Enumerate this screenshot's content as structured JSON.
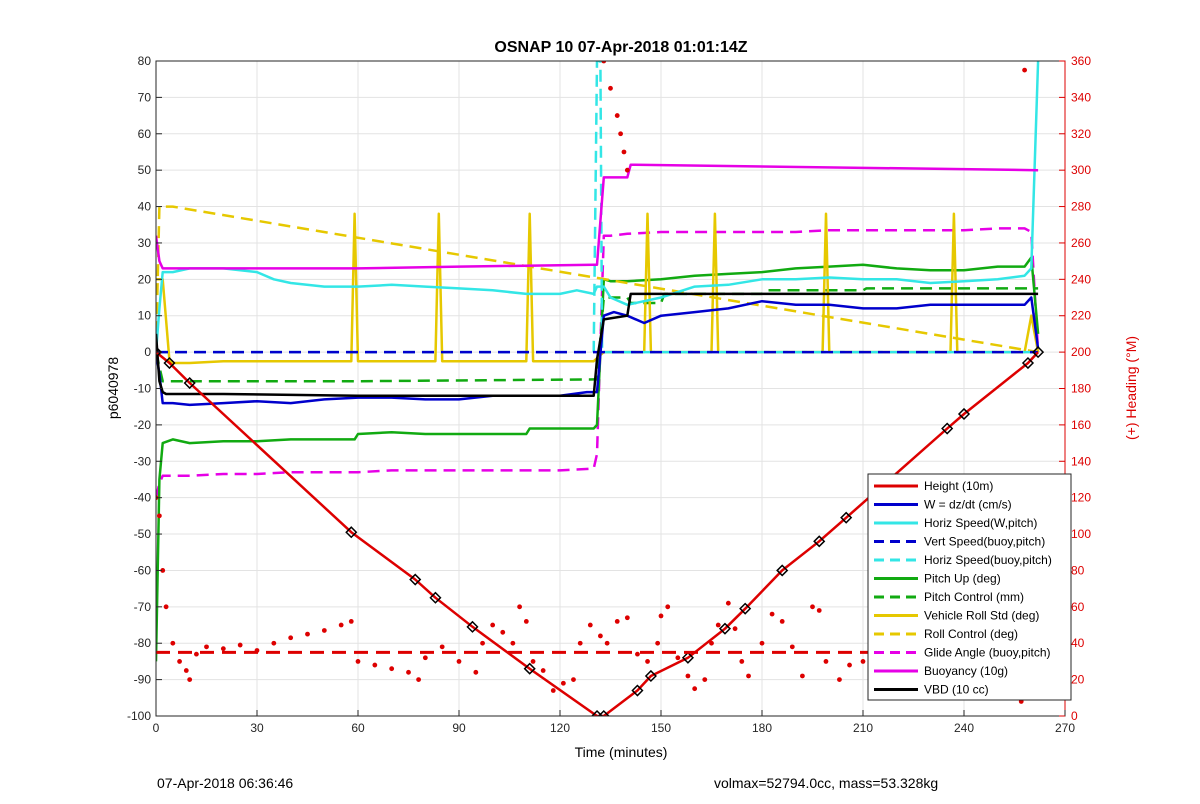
{
  "footer": {
    "left": "07-Apr-2018 06:36:46",
    "right": "volmax=52794.0cc, mass=53.328kg"
  },
  "chart_data": {
    "type": "line",
    "title": "OSNAP 10 07-Apr-2018 01:01:14Z",
    "xlabel": "Time (minutes)",
    "ylabel": "p6040978",
    "y2label": "(+) Heading (°M)",
    "xlim": [
      0,
      270
    ],
    "ylim": [
      -100,
      80
    ],
    "y2lim": [
      0,
      360
    ],
    "xticks": [
      0,
      30,
      60,
      90,
      120,
      150,
      180,
      210,
      240,
      270
    ],
    "yticks": [
      -100,
      -90,
      -80,
      -70,
      -60,
      -50,
      -40,
      -30,
      -20,
      -10,
      0,
      10,
      20,
      30,
      40,
      50,
      60,
      70,
      80
    ],
    "y2ticks": [
      0,
      20,
      40,
      60,
      80,
      100,
      120,
      140,
      160,
      180,
      200,
      220,
      240,
      260,
      280,
      300,
      320,
      340,
      360
    ],
    "grid": true,
    "legend_position": "bottom-right",
    "colors": {
      "height": "#dd0000",
      "w": "#0000cc",
      "horiz": "#33e6e6",
      "pitch": "#11aa11",
      "roll": "#e6c800",
      "glide": "#e600e6",
      "buoy": "#e600e6",
      "vbd": "#000000",
      "heading": "#dd0000",
      "right_axis": "#dd0000"
    },
    "series": [
      {
        "name": "Height (10m)",
        "key": "height",
        "style": "solid",
        "x": [
          0,
          4,
          10,
          58,
          77,
          83,
          94,
          111,
          131,
          133,
          143,
          147,
          158,
          169,
          175,
          186,
          197,
          205,
          235,
          240,
          259,
          262
        ],
        "y": [
          0,
          -3,
          -8.5,
          -49.5,
          -62.5,
          -67.5,
          -75.5,
          -87,
          -100,
          -100,
          -93,
          -89,
          -84,
          -76,
          -70.5,
          -60,
          -52,
          -45.5,
          -21,
          -17,
          -3,
          0
        ]
      },
      {
        "name": "W = dz/dt (cm/s)",
        "key": "w",
        "style": "solid",
        "x": [
          0,
          1,
          2,
          5,
          10,
          20,
          30,
          40,
          50,
          60,
          70,
          80,
          90,
          100,
          110,
          120,
          128,
          131,
          133,
          136,
          140,
          145,
          150,
          160,
          170,
          180,
          190,
          200,
          210,
          220,
          230,
          240,
          250,
          258,
          260,
          262
        ],
        "y": [
          0,
          -6,
          -14,
          -14,
          -14.5,
          -14,
          -13.5,
          -14,
          -13,
          -12.5,
          -12.5,
          -13,
          -13,
          -12,
          -12,
          -12,
          -11,
          -11,
          10,
          11,
          10,
          8,
          10,
          11,
          12,
          14,
          13,
          13,
          12,
          12,
          13,
          13,
          13,
          13,
          15,
          1
        ]
      },
      {
        "name": "Horiz Speed(W,pitch)",
        "key": "horiz",
        "style": "solid",
        "x": [
          0,
          1,
          2,
          5,
          10,
          20,
          30,
          35,
          40,
          50,
          60,
          70,
          80,
          90,
          100,
          110,
          120,
          125,
          130,
          131,
          133,
          135,
          140,
          150,
          160,
          170,
          180,
          190,
          200,
          210,
          220,
          230,
          240,
          250,
          258,
          260,
          262
        ],
        "y": [
          0,
          12,
          22,
          22,
          23,
          23,
          22,
          20,
          19,
          18,
          18,
          18.5,
          18,
          17.5,
          17,
          16,
          16,
          17,
          16,
          18,
          18,
          15,
          13,
          15,
          18,
          18.5,
          20,
          20,
          20.5,
          20,
          20,
          19,
          19.5,
          20,
          21,
          23,
          80
        ]
      },
      {
        "name": "Vert Speed(buoy,pitch)",
        "key": "w",
        "style": "dashed",
        "x": [
          0,
          133,
          262
        ],
        "y": [
          0,
          0,
          0
        ]
      },
      {
        "name": "Horiz Speed(buoy,pitch)",
        "key": "horiz",
        "style": "dashed",
        "x": [
          0,
          130,
          131,
          132,
          132.5,
          133,
          262
        ],
        "y": [
          0,
          0,
          80,
          80,
          0,
          0,
          0
        ]
      },
      {
        "name": "Pitch Up (deg)",
        "key": "pitch",
        "style": "solid",
        "x": [
          0,
          1,
          2,
          5,
          10,
          20,
          30,
          40,
          50,
          59,
          60,
          70,
          80,
          90,
          100,
          110,
          111,
          120,
          130,
          131,
          133,
          135,
          140,
          150,
          160,
          170,
          180,
          190,
          200,
          210,
          220,
          230,
          240,
          250,
          258,
          260,
          262
        ],
        "y": [
          -85,
          -35,
          -25,
          -24,
          -25,
          -24.5,
          -24.5,
          -24,
          -24,
          -24,
          -22.5,
          -22,
          -22.5,
          -22.5,
          -22.5,
          -22.5,
          -21,
          -21,
          -21,
          -20,
          20,
          19.5,
          19.5,
          20,
          21,
          21.5,
          22,
          23,
          23.5,
          24,
          23,
          22.5,
          22.5,
          23.5,
          23.5,
          26,
          5
        ]
      },
      {
        "name": "Pitch Control (mm)",
        "key": "pitch",
        "style": "dashed",
        "x": [
          0,
          2,
          60,
          61,
          130,
          131,
          133,
          140,
          141,
          150,
          151,
          180,
          181,
          210,
          211,
          262
        ],
        "y": [
          0,
          -8,
          -8,
          -8,
          -7.5,
          -7.5,
          15,
          15,
          13.5,
          13.5,
          16,
          16,
          17,
          17,
          17.5,
          17.5
        ]
      },
      {
        "name": "Vehicle Roll Std (deg)",
        "key": "roll",
        "style": "solid",
        "x": [
          0,
          2,
          4,
          5,
          10,
          20,
          30,
          40,
          50,
          58,
          59,
          60,
          70,
          83,
          84,
          85,
          94,
          95,
          110,
          111,
          112,
          120,
          130,
          133,
          140,
          145,
          146,
          147,
          150,
          160,
          165,
          166,
          167,
          170,
          180,
          190,
          198,
          199,
          200,
          210,
          220,
          230,
          236,
          237,
          238,
          245,
          255,
          258,
          260,
          262
        ],
        "y": [
          20,
          20,
          -2.5,
          -3,
          -3,
          -2.5,
          -2.5,
          -2.5,
          -2.5,
          -2.5,
          38,
          -2.5,
          -2.5,
          -2.5,
          38,
          -2.5,
          -2.5,
          -2.5,
          -2.5,
          38,
          -2.5,
          -2.5,
          -2.5,
          0,
          0,
          0,
          38,
          0,
          0,
          0,
          0,
          38,
          0,
          0,
          0,
          0,
          0,
          38,
          0,
          0,
          0,
          0,
          0,
          38,
          0,
          0,
          0,
          0,
          10,
          0
        ]
      },
      {
        "name": "Roll Control (deg)",
        "key": "roll",
        "style": "dashed",
        "x": [
          0,
          1,
          2,
          3,
          4,
          5,
          262
        ],
        "y": [
          0,
          40,
          40,
          40,
          40,
          40,
          0
        ]
      },
      {
        "name": "Glide Angle (buoy,pitch)",
        "key": "glide",
        "style": "dashed",
        "x": [
          0,
          1,
          2,
          5,
          10,
          20,
          30,
          40,
          50,
          60,
          70,
          80,
          90,
          100,
          110,
          120,
          130,
          131,
          133,
          135,
          140,
          150,
          160,
          170,
          180,
          190,
          200,
          210,
          220,
          230,
          240,
          250,
          258,
          260,
          262
        ],
        "y": [
          -40,
          -36,
          -34,
          -34,
          -34,
          -33.5,
          -33.5,
          -33,
          -33,
          -33,
          -32.5,
          -32.5,
          -32.5,
          -32.5,
          -32.5,
          -32.5,
          -32,
          -28,
          32,
          32,
          32.5,
          33,
          33,
          33,
          33,
          33,
          33.5,
          33.5,
          33.5,
          33.5,
          33.5,
          34,
          34,
          33,
          0
        ]
      },
      {
        "name": "Buoyancy (10g)",
        "key": "buoy",
        "style": "solid",
        "x": [
          0,
          1,
          2,
          60,
          90,
          130,
          131,
          133,
          140,
          141,
          262
        ],
        "y": [
          32,
          25,
          23,
          23,
          23.5,
          24,
          24,
          48,
          48,
          51.5,
          50
        ]
      },
      {
        "name": "VBD (10 cc)",
        "key": "vbd",
        "style": "solid",
        "x": [
          0,
          1,
          2,
          3,
          20,
          60,
          90,
          130,
          131,
          133,
          140,
          141,
          262
        ],
        "y": [
          5,
          -8,
          -11,
          -11.5,
          -11.5,
          -12,
          -12,
          -12,
          -2,
          9,
          10,
          16,
          16
        ]
      }
    ],
    "heading_points": [
      [
        0,
        120
      ],
      [
        1,
        110
      ],
      [
        2,
        80
      ],
      [
        3,
        60
      ],
      [
        5,
        40
      ],
      [
        7,
        30
      ],
      [
        9,
        25
      ],
      [
        10,
        20
      ],
      [
        12,
        34
      ],
      [
        15,
        38
      ],
      [
        20,
        37
      ],
      [
        25,
        39
      ],
      [
        30,
        36
      ],
      [
        35,
        40
      ],
      [
        40,
        43
      ],
      [
        45,
        45
      ],
      [
        50,
        47
      ],
      [
        55,
        50
      ],
      [
        58,
        52
      ],
      [
        60,
        30
      ],
      [
        65,
        28
      ],
      [
        70,
        26
      ],
      [
        75,
        24
      ],
      [
        78,
        20
      ],
      [
        80,
        32
      ],
      [
        85,
        38
      ],
      [
        90,
        30
      ],
      [
        95,
        24
      ],
      [
        97,
        40
      ],
      [
        100,
        50
      ],
      [
        103,
        46
      ],
      [
        106,
        40
      ],
      [
        108,
        60
      ],
      [
        110,
        52
      ],
      [
        112,
        30
      ],
      [
        115,
        25
      ],
      [
        118,
        14
      ],
      [
        121,
        18
      ],
      [
        124,
        20
      ],
      [
        126,
        40
      ],
      [
        129,
        50
      ],
      [
        132,
        44
      ],
      [
        134,
        40
      ],
      [
        137,
        52
      ],
      [
        140,
        54
      ],
      [
        143,
        34
      ],
      [
        146,
        30
      ],
      [
        149,
        40
      ],
      [
        150,
        55
      ],
      [
        152,
        60
      ],
      [
        155,
        32
      ],
      [
        158,
        22
      ],
      [
        160,
        15
      ],
      [
        163,
        20
      ],
      [
        165,
        40
      ],
      [
        167,
        50
      ],
      [
        170,
        62
      ],
      [
        172,
        48
      ],
      [
        174,
        30
      ],
      [
        176,
        22
      ],
      [
        180,
        40
      ],
      [
        183,
        56
      ],
      [
        186,
        52
      ],
      [
        189,
        38
      ],
      [
        192,
        22
      ],
      [
        195,
        60
      ],
      [
        197,
        58
      ],
      [
        199,
        30
      ],
      [
        203,
        20
      ],
      [
        206,
        28
      ],
      [
        210,
        30
      ],
      [
        214,
        32
      ],
      [
        218,
        30
      ],
      [
        222,
        27
      ],
      [
        226,
        40
      ],
      [
        230,
        56
      ],
      [
        234,
        44
      ],
      [
        238,
        30
      ],
      [
        242,
        22
      ],
      [
        246,
        14
      ],
      [
        250,
        34
      ],
      [
        254,
        20
      ],
      [
        257,
        8
      ],
      [
        260,
        42
      ],
      [
        262,
        48
      ],
      [
        133,
        360
      ],
      [
        135,
        345
      ],
      [
        137,
        330
      ],
      [
        138,
        320
      ],
      [
        139,
        310
      ],
      [
        140,
        300
      ],
      [
        258,
        355
      ]
    ]
  }
}
